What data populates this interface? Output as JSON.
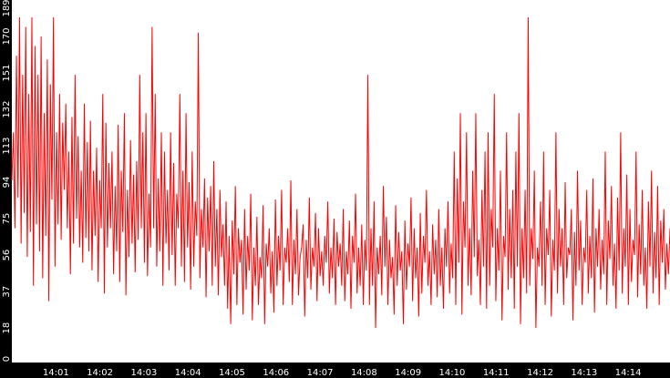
{
  "chart_data": {
    "type": "line",
    "background": "#000000",
    "plot_background": "#ffffff",
    "line_color": "#ff0000",
    "axis_text_color": "#ffffff",
    "grid": false,
    "y_ticks": [
      "0",
      "18",
      "37",
      "56",
      "75",
      "94",
      "113",
      "132",
      "151",
      "170",
      "189"
    ],
    "ylim": [
      0,
      189
    ],
    "x_ticks": [
      "14:01",
      "14:02",
      "14:03",
      "14:04",
      "14:05",
      "14:06",
      "14:07",
      "14:08",
      "14:09",
      "14:10",
      "14:11",
      "14:12",
      "14:13",
      "14:14"
    ],
    "xlim_minutes": [
      0.0,
      14.95
    ],
    "series": [
      {
        "values": [
          95,
          120,
          70,
          160,
          86,
          180,
          62,
          150,
          78,
          175,
          55,
          140,
          68,
          180,
          40,
          165,
          72,
          150,
          58,
          170,
          44,
          130,
          66,
          158,
          32,
          145,
          85,
          180,
          50,
          120,
          72,
          140,
          64,
          125,
          90,
          135,
          70,
          110,
          46,
          128,
          62,
          150,
          75,
          118,
          60,
          100,
          52,
          135,
          65,
          115,
          58,
          126,
          48,
          100,
          66,
          112,
          42,
          95,
          70,
          140,
          36,
          125,
          60,
          104,
          70,
          110,
          46,
          92,
          58,
          124,
          42,
          100,
          68,
          130,
          35,
          90,
          55,
          116,
          62,
          98,
          47,
          105,
          64,
          150,
          70,
          120,
          52,
          130,
          45,
          88,
          60,
          175,
          70,
          140,
          50,
          96,
          58,
          120,
          40,
          110,
          62,
          90,
          48,
          120,
          56,
          104,
          40,
          88,
          70,
          140,
          50,
          100,
          42,
          130,
          60,
          94,
          38,
          110,
          50,
          84,
          66,
          172,
          44,
          80,
          60,
          96,
          34,
          86,
          58,
          92,
          40,
          105,
          50,
          80,
          35,
          90,
          55,
          72,
          40,
          84,
          28,
          66,
          20,
          74,
          46,
          92,
          30,
          70,
          52,
          64,
          25,
          80,
          38,
          66,
          48,
          88,
          22,
          60,
          40,
          76,
          30,
          55,
          44,
          82,
          20,
          62,
          50,
          70,
          36,
          58,
          26,
          85,
          40,
          66,
          48,
          90,
          30,
          60,
          52,
          70,
          42,
          95,
          30,
          64,
          46,
          80,
          35,
          55,
          60,
          72,
          24,
          64,
          44,
          86,
          38,
          60,
          50,
          78,
          32,
          70,
          45,
          58,
          40,
          66,
          52,
          84,
          36,
          60,
          44,
          75,
          30,
          68,
          50,
          62,
          40,
          80,
          32,
          58,
          46,
          74,
          28,
          66,
          52,
          88,
          36,
          60,
          40,
          72,
          30,
          64,
          48,
          150,
          30,
          70,
          40,
          84,
          18,
          60,
          46,
          66,
          35,
          92,
          50,
          76,
          30,
          64,
          44,
          55,
          25,
          82,
          40,
          68,
          48,
          58,
          20,
          74,
          38,
          62,
          50,
          86,
          32,
          70,
          44,
          60,
          24,
          78,
          36,
          66,
          52,
          90,
          40,
          58,
          30,
          72,
          46,
          64,
          34,
          80,
          40,
          60,
          28,
          70,
          50,
          84,
          36,
          62,
          44,
          110,
          30,
          96,
          52,
          130,
          25,
          84,
          60,
          120,
          40,
          70,
          35,
          100,
          55,
          130,
          45,
          64,
          30,
          90,
          50,
          110,
          28,
          120,
          40,
          80,
          60,
          140,
          32,
          70,
          48,
          100,
          22,
          66,
          55,
          120,
          38,
          80,
          44,
          90,
          28,
          110,
          50,
          130,
          20,
          70,
          44,
          90,
          36,
          180,
          40,
          70,
          54,
          100,
          18,
          60,
          50,
          84,
          40,
          110,
          30,
          70,
          56,
          90,
          24,
          64,
          48,
          120,
          36,
          80,
          50,
          70,
          30,
          94,
          44,
          60,
          56,
          80,
          22,
          68,
          40,
          100,
          48,
          74,
          30,
          60,
          52,
          90,
          36,
          66,
          44,
          96,
          26,
          70,
          50,
          80,
          38,
          64,
          46,
          110,
          30,
          74,
          54,
          92,
          40,
          62,
          28,
          86,
          48,
          120,
          36,
          70,
          50,
          98,
          30,
          80,
          42,
          64,
          56,
          110,
          34,
          72,
          46,
          90,
          40,
          60,
          28,
          84,
          50,
          100,
          36,
          68,
          44,
          92,
          30,
          74,
          52,
          80,
          38,
          62,
          46,
          70
        ]
      }
    ]
  }
}
